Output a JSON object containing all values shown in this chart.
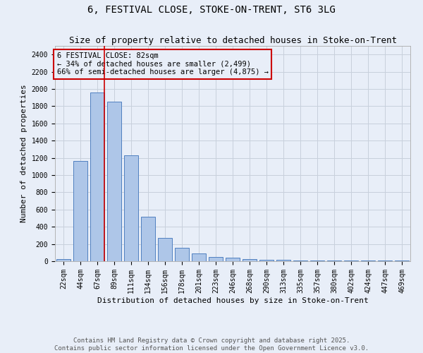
{
  "title_line1": "6, FESTIVAL CLOSE, STOKE-ON-TRENT, ST6 3LG",
  "title_line2": "Size of property relative to detached houses in Stoke-on-Trent",
  "xlabel": "Distribution of detached houses by size in Stoke-on-Trent",
  "ylabel": "Number of detached properties",
  "categories": [
    "22sqm",
    "44sqm",
    "67sqm",
    "89sqm",
    "111sqm",
    "134sqm",
    "156sqm",
    "178sqm",
    "201sqm",
    "223sqm",
    "246sqm",
    "268sqm",
    "290sqm",
    "313sqm",
    "335sqm",
    "357sqm",
    "380sqm",
    "402sqm",
    "424sqm",
    "447sqm",
    "469sqm"
  ],
  "values": [
    28,
    1160,
    1960,
    1850,
    1230,
    515,
    270,
    155,
    90,
    50,
    40,
    25,
    20,
    20,
    5,
    5,
    5,
    5,
    5,
    5,
    5
  ],
  "bar_color": "#aec6e8",
  "bar_edge_color": "#5080c0",
  "vline_x_idx": 2,
  "vline_color": "#cc0000",
  "annotation_text": "6 FESTIVAL CLOSE: 82sqm\n← 34% of detached houses are smaller (2,499)\n66% of semi-detached houses are larger (4,875) →",
  "annotation_box_color": "#cc0000",
  "ylim": [
    0,
    2500
  ],
  "yticks": [
    0,
    200,
    400,
    600,
    800,
    1000,
    1200,
    1400,
    1600,
    1800,
    2000,
    2200,
    2400
  ],
  "grid_color": "#c8d0dc",
  "background_color": "#e8eef8",
  "footer_text": "Contains HM Land Registry data © Crown copyright and database right 2025.\nContains public sector information licensed under the Open Government Licence v3.0.",
  "title_fontsize": 10,
  "subtitle_fontsize": 9,
  "axis_label_fontsize": 8,
  "tick_fontsize": 7,
  "annotation_fontsize": 7.5,
  "footer_fontsize": 6.5
}
